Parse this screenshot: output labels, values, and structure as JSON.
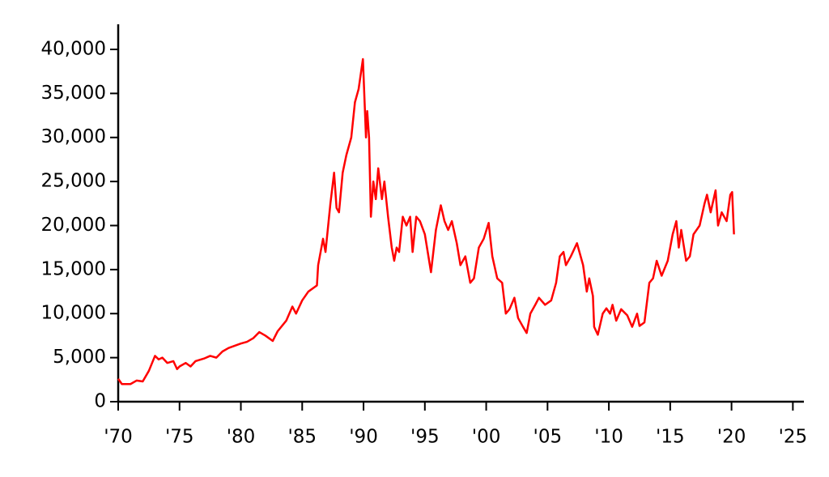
{
  "chart_data": {
    "type": "line",
    "x": [
      1970.0,
      1970.3,
      1971.0,
      1971.5,
      1972.0,
      1972.5,
      1973.0,
      1973.3,
      1973.6,
      1974.0,
      1974.5,
      1974.8,
      1975.0,
      1975.5,
      1975.9,
      1976.3,
      1977.0,
      1977.5,
      1978.0,
      1978.5,
      1979.0,
      1980.0,
      1980.5,
      1981.0,
      1981.5,
      1982.0,
      1982.6,
      1983.0,
      1983.7,
      1984.2,
      1984.5,
      1985.0,
      1985.5,
      1986.0,
      1986.2,
      1986.3,
      1986.7,
      1986.9,
      1987.3,
      1987.6,
      1987.8,
      1988.0,
      1988.3,
      1988.6,
      1989.0,
      1989.3,
      1989.6,
      1989.95,
      1990.2,
      1990.3,
      1990.45,
      1990.6,
      1990.8,
      1991.0,
      1991.2,
      1991.5,
      1991.7,
      1992.0,
      1992.3,
      1992.5,
      1992.7,
      1992.9,
      1993.2,
      1993.5,
      1993.8,
      1994.0,
      1994.3,
      1994.6,
      1995.0,
      1995.5,
      1995.9,
      1996.3,
      1996.6,
      1996.9,
      1997.2,
      1997.6,
      1997.9,
      1998.3,
      1998.7,
      1999.0,
      1999.4,
      1999.8,
      2000.2,
      2000.5,
      2000.9,
      2001.3,
      2001.6,
      2001.9,
      2002.3,
      2002.6,
      2003.0,
      2003.3,
      2003.6,
      2004.0,
      2004.3,
      2004.8,
      2005.3,
      2005.7,
      2006.0,
      2006.3,
      2006.5,
      2006.9,
      2007.4,
      2007.6,
      2007.9,
      2008.2,
      2008.4,
      2008.7,
      2008.8,
      2009.1,
      2009.5,
      2009.8,
      2010.1,
      2010.3,
      2010.6,
      2011.0,
      2011.5,
      2011.9,
      2012.3,
      2012.5,
      2012.9,
      2013.3,
      2013.6,
      2013.9,
      2014.3,
      2014.8,
      2015.2,
      2015.5,
      2015.7,
      2015.9,
      2016.3,
      2016.6,
      2016.9,
      2017.4,
      2017.8,
      2018.0,
      2018.3,
      2018.7,
      2018.9,
      2019.2,
      2019.6,
      2019.9,
      2020.05,
      2020.2
    ],
    "series": [
      {
        "color": "#ff0000",
        "values": [
          2600,
          2000,
          2000,
          2400,
          2300,
          3500,
          5200,
          4800,
          5000,
          4400,
          4600,
          3700,
          4000,
          4400,
          4000,
          4600,
          4900,
          5200,
          5000,
          5700,
          6100,
          6600,
          6800,
          7200,
          7900,
          7500,
          6900,
          8000,
          9200,
          10800,
          10000,
          11500,
          12500,
          13000,
          13200,
          15500,
          18500,
          17000,
          22500,
          26000,
          22000,
          21500,
          26000,
          28000,
          30000,
          34000,
          35500,
          38900,
          30000,
          33000,
          30000,
          21000,
          25000,
          23000,
          26500,
          23000,
          25000,
          21000,
          17500,
          16000,
          17500,
          17000,
          21000,
          20000,
          21000,
          17000,
          21000,
          20500,
          19000,
          14700,
          19500,
          22300,
          20500,
          19500,
          20500,
          18000,
          15500,
          16500,
          13500,
          14000,
          17500,
          18500,
          20300,
          16500,
          14000,
          13500,
          10000,
          10500,
          11800,
          9500,
          8500,
          7800,
          10000,
          11000,
          11800,
          11000,
          11500,
          13500,
          16500,
          17000,
          15500,
          16500,
          18000,
          17000,
          15500,
          12500,
          14000,
          12000,
          8500,
          7600,
          10000,
          10600,
          10000,
          11000,
          9200,
          10500,
          9800,
          8500,
          10000,
          8600,
          9000,
          13500,
          14000,
          16000,
          14300,
          16000,
          19000,
          20500,
          17500,
          19500,
          16000,
          16500,
          19000,
          20000,
          22500,
          23500,
          21500,
          24000,
          20000,
          21500,
          20500,
          23500,
          23800,
          19000
        ]
      }
    ],
    "xlim": [
      1970,
      2025.9
    ],
    "ylim": [
      0,
      42850
    ],
    "xticks": [
      {
        "value": 1970,
        "label": "'70"
      },
      {
        "value": 1975,
        "label": "'75"
      },
      {
        "value": 1980,
        "label": "'80"
      },
      {
        "value": 1985,
        "label": "'85"
      },
      {
        "value": 1990,
        "label": "'90"
      },
      {
        "value": 1995,
        "label": "'95"
      },
      {
        "value": 2000,
        "label": "'00"
      },
      {
        "value": 2005,
        "label": "'05"
      },
      {
        "value": 2010,
        "label": "'10"
      },
      {
        "value": 2015,
        "label": "'15"
      },
      {
        "value": 2020,
        "label": "'20"
      },
      {
        "value": 2025,
        "label": "'25"
      }
    ],
    "yticks": [
      0,
      {
        "value": 5000,
        "label": "5,000"
      },
      {
        "value": 10000,
        "label": "10,000"
      },
      {
        "value": 15000,
        "label": "15,000"
      },
      {
        "value": 20000,
        "label": "20,000"
      },
      {
        "value": 25000,
        "label": "25,000"
      },
      {
        "value": 30000,
        "label": "30,000"
      },
      {
        "value": 35000,
        "label": "35,000"
      },
      {
        "value": 40000,
        "label": "40,000"
      }
    ],
    "grid": false
  }
}
